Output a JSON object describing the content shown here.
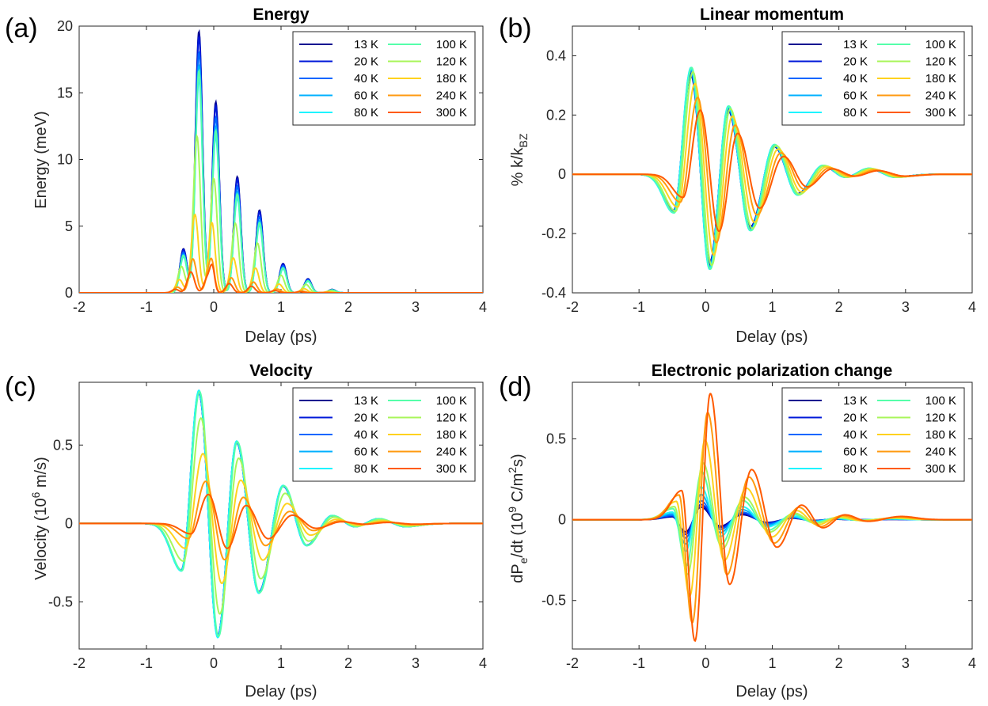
{
  "figure": {
    "legend_labels": [
      "13 K",
      "20 K",
      "40 K",
      "60 K",
      "80 K",
      "100 K",
      "120 K",
      "180 K",
      "240 K",
      "300 K"
    ],
    "series_colors": [
      "#00008f",
      "#0019d9",
      "#0066ff",
      "#00b0ff",
      "#1ef4ff",
      "#55ffaa",
      "#a8f65a",
      "#ffd21e",
      "#ff9a0f",
      "#ff5a00"
    ],
    "axis_color": "#262626",
    "x_tick_labels": [
      "-2",
      "-1",
      "0",
      "1",
      "2",
      "3",
      "4"
    ]
  },
  "chart_data": [
    {
      "letter": "(a)",
      "type": "line",
      "title": "Energy",
      "xlabel": "Delay (ps)",
      "ylabel": "Energy (meV)",
      "xlim": [
        -2,
        4
      ],
      "ylim": [
        0,
        20
      ],
      "yticks": [
        0,
        5,
        10,
        15,
        20
      ],
      "ytick_labels": [
        "0",
        "5",
        "10",
        "15",
        "20"
      ],
      "legend_position": "top-right",
      "model": "energy",
      "peak_times": [
        -0.45,
        -0.22,
        0.03,
        0.35,
        0.68,
        1.03,
        1.4,
        1.76
      ],
      "peaks_13K": [
        3.3,
        19.6,
        14.3,
        8.7,
        6.2,
        2.2,
        1.05,
        0.25
      ],
      "scale_by_temperature": [
        1.0,
        0.98,
        0.92,
        0.87,
        0.82,
        0.85,
        0.6,
        0.3,
        0.13,
        0.08
      ]
    },
    {
      "letter": "(b)",
      "type": "line",
      "title": "Linear momentum",
      "xlabel": "Delay (ps)",
      "ylabel": "% k/k",
      "ylabel_sub": "BZ",
      "xlim": [
        -2,
        4
      ],
      "ylim": [
        -0.4,
        0.5
      ],
      "yticks": [
        -0.4,
        -0.2,
        0,
        0.2,
        0.4
      ],
      "ytick_labels": [
        "-0.4",
        "-0.2",
        "0",
        "0.2",
        "0.4"
      ],
      "legend_position": "top-right",
      "model": "oscillation",
      "phase_delay_ps": [
        0,
        0,
        0,
        0,
        0,
        0.01,
        0.03,
        0.06,
        0.1,
        0.14
      ],
      "amplitude_scale": [
        0.93,
        0.95,
        0.97,
        0.99,
        1.0,
        1.0,
        0.96,
        0.85,
        0.72,
        0.6
      ],
      "extrema_13K": [
        {
          "x": -0.48,
          "y": -0.13
        },
        {
          "x": -0.22,
          "y": 0.36
        },
        {
          "x": 0.06,
          "y": -0.32
        },
        {
          "x": 0.34,
          "y": 0.23
        },
        {
          "x": 0.67,
          "y": -0.19
        },
        {
          "x": 1.03,
          "y": 0.1
        },
        {
          "x": 1.38,
          "y": -0.07
        },
        {
          "x": 1.76,
          "y": 0.03
        },
        {
          "x": 2.1,
          "y": -0.01
        },
        {
          "x": 2.45,
          "y": 0.02
        },
        {
          "x": 2.85,
          "y": -0.01
        }
      ]
    },
    {
      "letter": "(c)",
      "type": "line",
      "title": "Velocity",
      "xlabel": "Delay (ps)",
      "ylabel": "Velocity (10",
      "ylabel_sup": "6",
      "ylabel_tail": " m/s)",
      "xlim": [
        -2,
        4
      ],
      "ylim": [
        -0.8,
        0.9
      ],
      "yticks": [
        -0.5,
        0,
        0.5
      ],
      "ytick_labels": [
        "-0.5",
        "0",
        "0.5"
      ],
      "legend_position": "top-right",
      "model": "oscillation",
      "phase_delay_ps": [
        0,
        0,
        0,
        0,
        0,
        0.01,
        0.03,
        0.06,
        0.1,
        0.14
      ],
      "amplitude_scale": [
        0.99,
        0.99,
        1.0,
        1.0,
        1.01,
        1.0,
        0.8,
        0.53,
        0.32,
        0.22
      ],
      "extrema_13K": [
        {
          "x": -0.48,
          "y": -0.3
        },
        {
          "x": -0.22,
          "y": 0.84
        },
        {
          "x": 0.06,
          "y": -0.72
        },
        {
          "x": 0.34,
          "y": 0.52
        },
        {
          "x": 0.67,
          "y": -0.44
        },
        {
          "x": 1.03,
          "y": 0.24
        },
        {
          "x": 1.38,
          "y": -0.14
        },
        {
          "x": 1.76,
          "y": 0.05
        },
        {
          "x": 2.1,
          "y": -0.02
        },
        {
          "x": 2.45,
          "y": 0.03
        },
        {
          "x": 2.85,
          "y": -0.02
        }
      ]
    },
    {
      "letter": "(d)",
      "type": "line",
      "title": "Electronic polarization change",
      "xlabel": "Delay (ps)",
      "ylabel": "dP",
      "ylabel_sub": "e",
      "ylabel_tail": "/dt (10",
      "ylabel_sup": "9",
      "ylabel_tail2": " C/m",
      "ylabel_sup2": "2",
      "ylabel_tail3": "s)",
      "xlim": [
        -2,
        4
      ],
      "ylim": [
        -0.8,
        0.85
      ],
      "yticks": [
        -0.5,
        0,
        0.5
      ],
      "ytick_labels": [
        "-0.5",
        "0",
        "0.5"
      ],
      "legend_position": "top-right",
      "model": "oscillation",
      "phase_delay_ps": [
        0,
        0,
        0,
        0,
        0,
        0.01,
        0.03,
        0.06,
        0.1,
        0.14
      ],
      "amplitude_scale": [
        0.1,
        0.12,
        0.15,
        0.2,
        0.26,
        0.38,
        0.45,
        0.63,
        0.85,
        1.0
      ],
      "extrema_13K": [
        {
          "x": -0.5,
          "y": 0.18
        },
        {
          "x": -0.3,
          "y": -0.75
        },
        {
          "x": -0.07,
          "y": 0.78
        },
        {
          "x": 0.22,
          "y": -0.4
        },
        {
          "x": 0.55,
          "y": 0.31
        },
        {
          "x": 0.93,
          "y": -0.17
        },
        {
          "x": 1.3,
          "y": 0.09
        },
        {
          "x": 1.62,
          "y": -0.05
        },
        {
          "x": 1.95,
          "y": 0.03
        },
        {
          "x": 2.3,
          "y": -0.01
        },
        {
          "x": 2.8,
          "y": 0.02
        }
      ]
    }
  ]
}
